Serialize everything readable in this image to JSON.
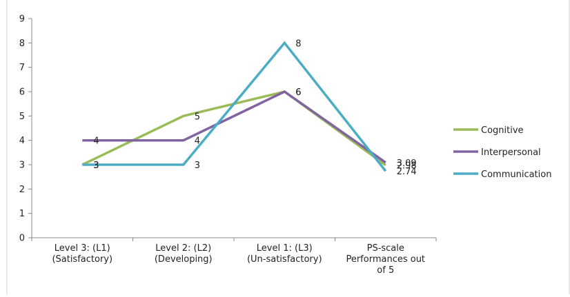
{
  "chart_data": {
    "type": "line",
    "title": "",
    "xlabel": "",
    "ylabel": "",
    "ylim": [
      0,
      9
    ],
    "yticks": [
      0,
      1,
      2,
      3,
      4,
      5,
      6,
      7,
      8,
      9
    ],
    "grid": false,
    "legend_position": "right",
    "categories": [
      [
        "Level 3: (L1)",
        "(Satisfactory)"
      ],
      [
        "Level 2: (L2)",
        "(Developing)"
      ],
      [
        "Level 1: (L3)",
        "(Un-satisfactory)"
      ],
      [
        "PS-scale",
        "Performances out",
        "of 5"
      ]
    ],
    "series": [
      {
        "name": "Cognitive",
        "color": "#9BBB59",
        "values": [
          3,
          5,
          6,
          2.98
        ],
        "labels": [
          "3",
          "5",
          "6",
          "2.98"
        ]
      },
      {
        "name": "Interpersonal",
        "color": "#8064A2",
        "values": [
          4,
          4,
          6,
          3.09
        ],
        "labels": [
          "4",
          "4",
          "6",
          "3.09"
        ]
      },
      {
        "name": "Communication",
        "color": "#4BACC6",
        "values": [
          3,
          3,
          8,
          2.74
        ],
        "labels": [
          "3",
          "3",
          "8",
          "2.74"
        ]
      }
    ]
  }
}
